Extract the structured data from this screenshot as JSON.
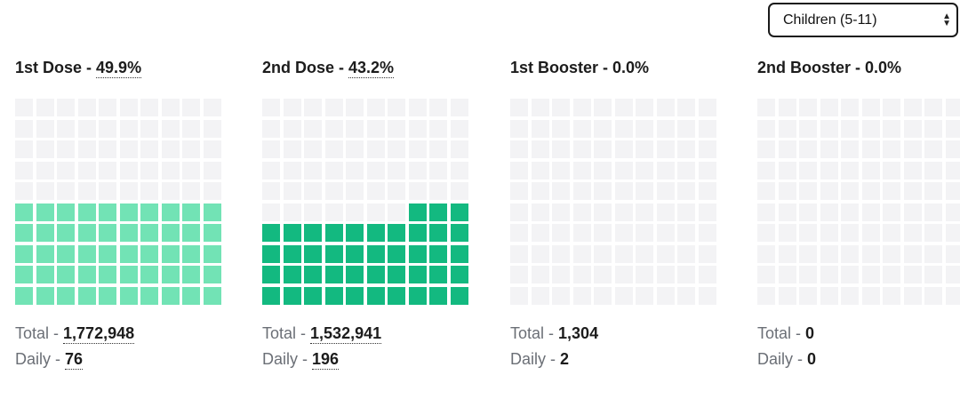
{
  "filter": {
    "selected": "Children (5-11)"
  },
  "panels": [
    {
      "title_prefix": "1st Dose - ",
      "title_value": "49.9%",
      "fill_fraction": 0.499,
      "color": "#72e3b5",
      "total_label": "Total - ",
      "total_value": "1,772,948",
      "daily_label": "Daily - ",
      "daily_value": "76",
      "dotted": true
    },
    {
      "title_prefix": "2nd Dose - ",
      "title_value": "43.2%",
      "fill_fraction": 0.432,
      "color": "#13b980",
      "total_label": "Total - ",
      "total_value": "1,532,941",
      "daily_label": "Daily - ",
      "daily_value": "196",
      "dotted": true
    },
    {
      "title_prefix": "1st Booster - ",
      "title_value": "0.0%",
      "fill_fraction": 0.0,
      "color": "#13b980",
      "total_label": "Total - ",
      "total_value": "1,304",
      "daily_label": "Daily - ",
      "daily_value": "2",
      "dotted": false
    },
    {
      "title_prefix": "2nd Booster - ",
      "title_value": "0.0%",
      "fill_fraction": 0.0,
      "color": "#13b980",
      "total_label": "Total - ",
      "total_value": "0",
      "daily_label": "Daily - ",
      "daily_value": "0",
      "dotted": false
    }
  ]
}
